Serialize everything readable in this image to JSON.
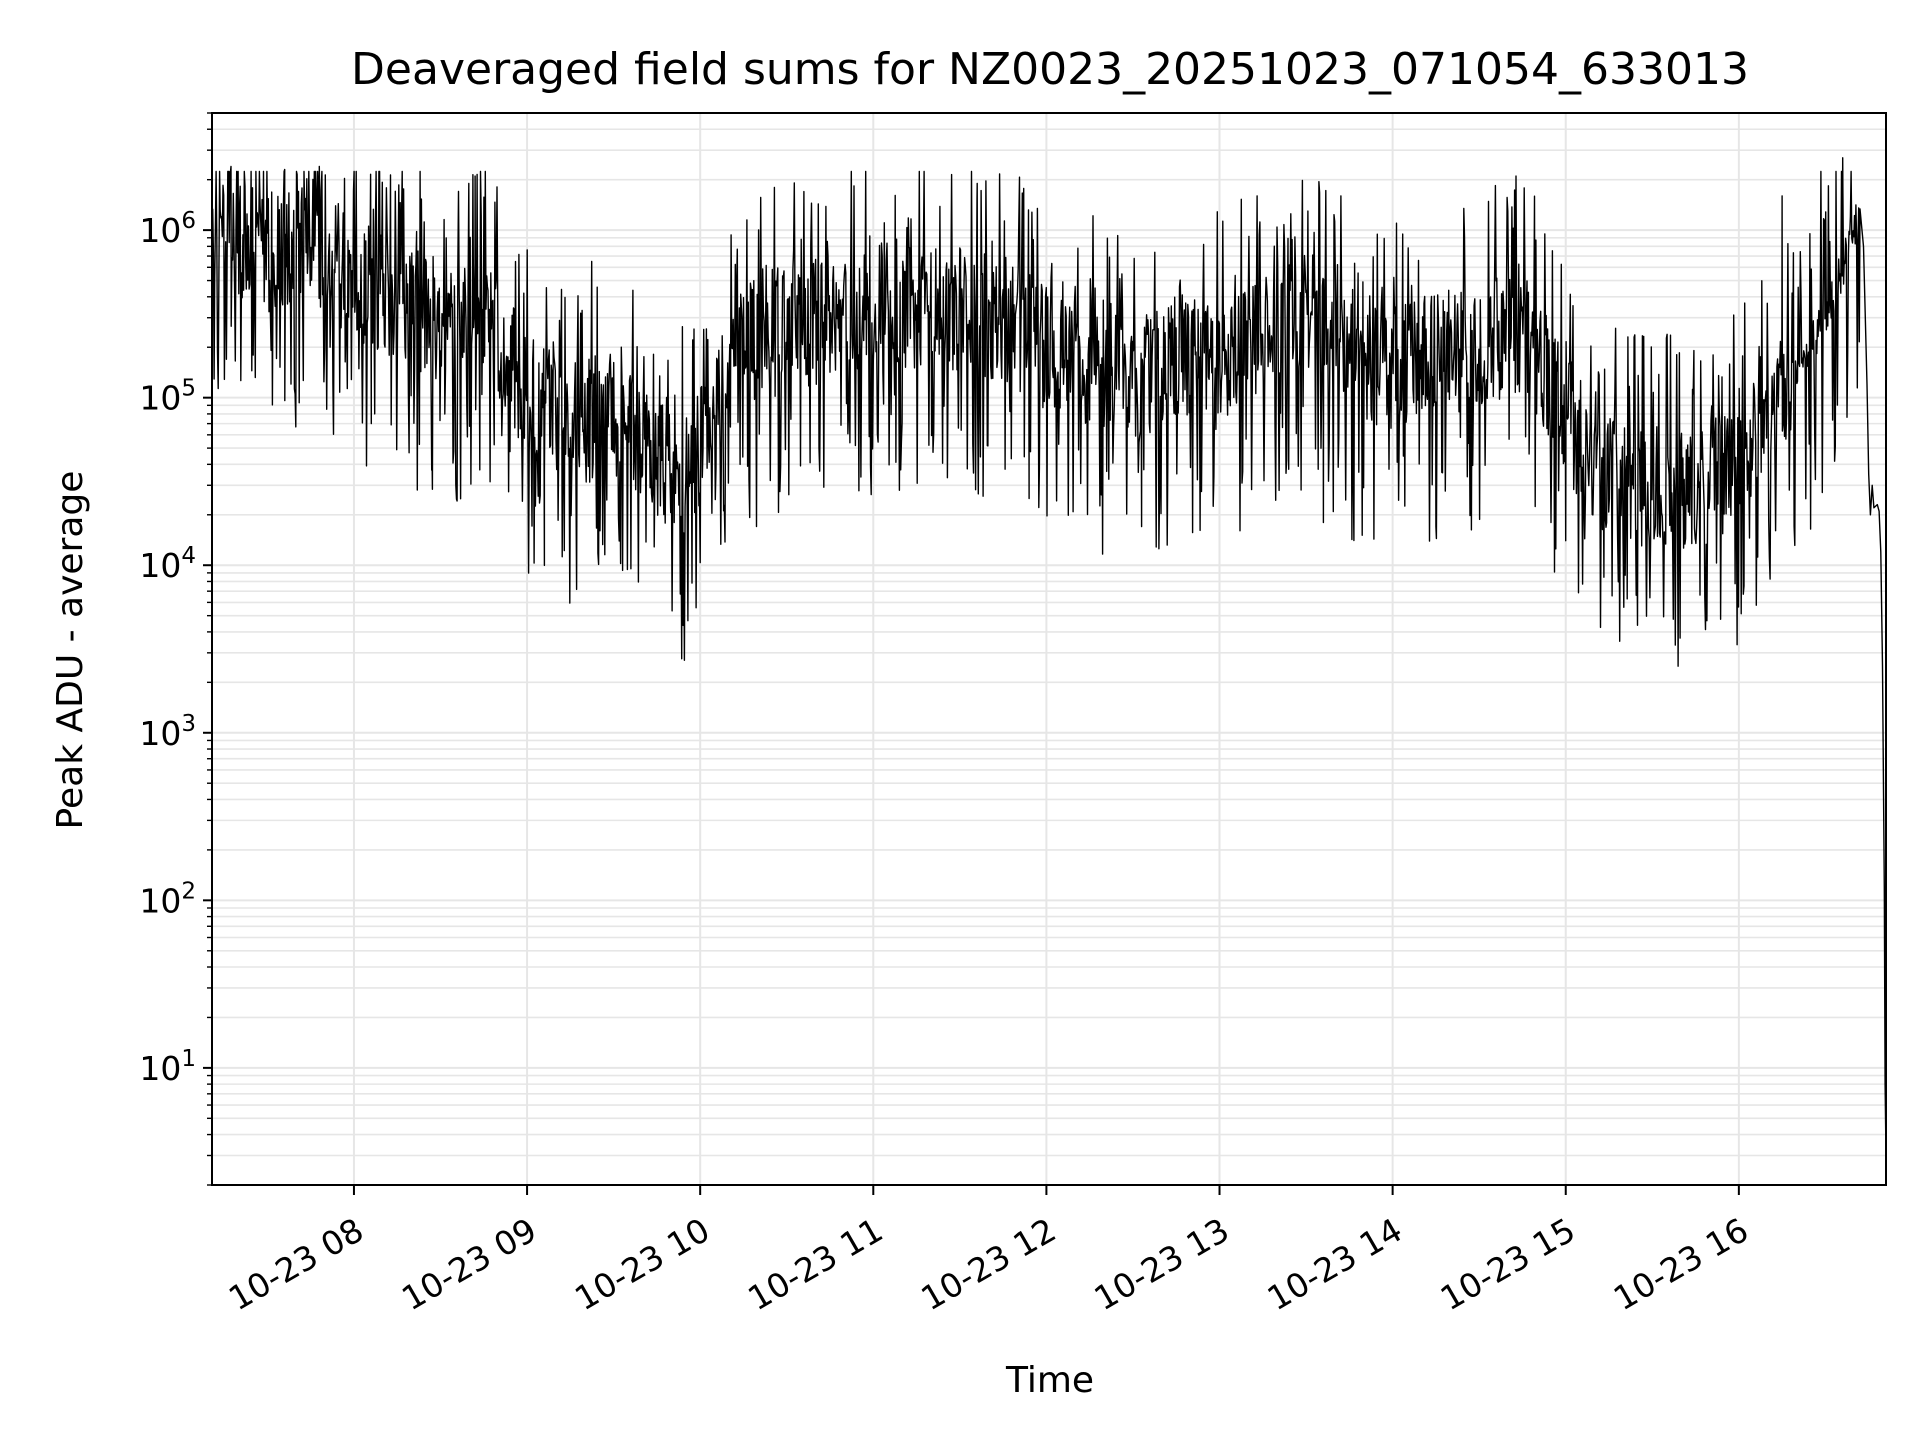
{
  "chart_data": {
    "type": "line",
    "title": "Deaveraged field sums for NZ0023_20251023_071054_633013",
    "xlabel": "Time",
    "ylabel": "Peak ADU - average",
    "yscale": "log",
    "ylim": [
      2,
      5000000
    ],
    "xlim_hours": [
      7.18,
      16.85
    ],
    "grid": true,
    "line_color": "#000000",
    "grid_color": "#e6e6e6",
    "y_ticks": [
      {
        "base": "10",
        "exp": "1",
        "value": 10
      },
      {
        "base": "10",
        "exp": "2",
        "value": 100
      },
      {
        "base": "10",
        "exp": "3",
        "value": 1000
      },
      {
        "base": "10",
        "exp": "4",
        "value": 10000
      },
      {
        "base": "10",
        "exp": "5",
        "value": 100000
      },
      {
        "base": "10",
        "exp": "6",
        "value": 1000000
      }
    ],
    "x_ticks": [
      {
        "label": "10-23 08",
        "hour": 8
      },
      {
        "label": "10-23 09",
        "hour": 9
      },
      {
        "label": "10-23 10",
        "hour": 10
      },
      {
        "label": "10-23 11",
        "hour": 11
      },
      {
        "label": "10-23 12",
        "hour": 12
      },
      {
        "label": "10-23 13",
        "hour": 13
      },
      {
        "label": "10-23 14",
        "hour": 14
      },
      {
        "label": "10-23 15",
        "hour": 15
      },
      {
        "label": "10-23 16",
        "hour": 16
      }
    ],
    "series": [
      {
        "name": "deaveraged field sum",
        "baseline": {
          "hours": [
            7.18,
            7.25,
            7.5,
            7.75,
            8.0,
            8.25,
            8.5,
            8.75,
            9.0,
            9.25,
            9.5,
            9.75,
            9.9,
            10.0,
            10.25,
            10.5,
            10.75,
            11.0,
            11.25,
            11.5,
            11.75,
            12.0,
            12.25,
            12.5,
            12.75,
            13.0,
            13.25,
            13.5,
            13.75,
            14.0,
            14.25,
            14.5,
            14.75,
            15.0,
            15.25,
            15.5,
            15.75,
            16.0,
            16.25,
            16.5,
            16.6,
            16.65,
            16.7
          ],
          "values": [
            600000,
            1000000,
            700000,
            900000,
            500000,
            400000,
            250000,
            350000,
            100000,
            70000,
            80000,
            45000,
            30000,
            50000,
            200000,
            250000,
            300000,
            320000,
            350000,
            330000,
            300000,
            200000,
            150000,
            120000,
            180000,
            150000,
            250000,
            300000,
            180000,
            150000,
            180000,
            200000,
            250000,
            80000,
            30000,
            30000,
            28000,
            40000,
            100000,
            300000,
            600000,
            1000000,
            1200000
          ]
        },
        "tail": {
          "hours": [
            16.7,
            16.72,
            16.74,
            16.75,
            16.76,
            16.77,
            16.78,
            16.8,
            16.81,
            16.82,
            16.83,
            16.84,
            16.845,
            16.85
          ],
          "values": [
            1500000,
            800000,
            120000,
            35000,
            20000,
            30000,
            22000,
            23000,
            21000,
            12000,
            2500,
            120,
            8,
            3
          ]
        },
        "spikes": [
          {
            "hour": 7.29,
            "value": 2400000
          },
          {
            "hour": 7.6,
            "value": 2300000
          },
          {
            "hour": 7.8,
            "value": 2400000
          },
          {
            "hour": 8.7,
            "value": 2100000
          },
          {
            "hour": 11.6,
            "value": 1900000
          },
          {
            "hour": 16.25,
            "value": 1600000
          },
          {
            "hour": 16.6,
            "value": 2700000
          }
        ],
        "dips": [
          {
            "hour": 8.1,
            "value": 70000
          },
          {
            "hour": 8.45,
            "value": 55000
          },
          {
            "hour": 9.1,
            "value": 35000
          },
          {
            "hour": 9.85,
            "value": 18000
          },
          {
            "hour": 11.9,
            "value": 25000
          },
          {
            "hour": 12.55,
            "value": 17000
          },
          {
            "hour": 13.6,
            "value": 18000
          },
          {
            "hour": 14.25,
            "value": 17000
          },
          {
            "hour": 15.0,
            "value": 14000
          },
          {
            "hour": 15.75,
            "value": 14000
          }
        ]
      }
    ]
  }
}
